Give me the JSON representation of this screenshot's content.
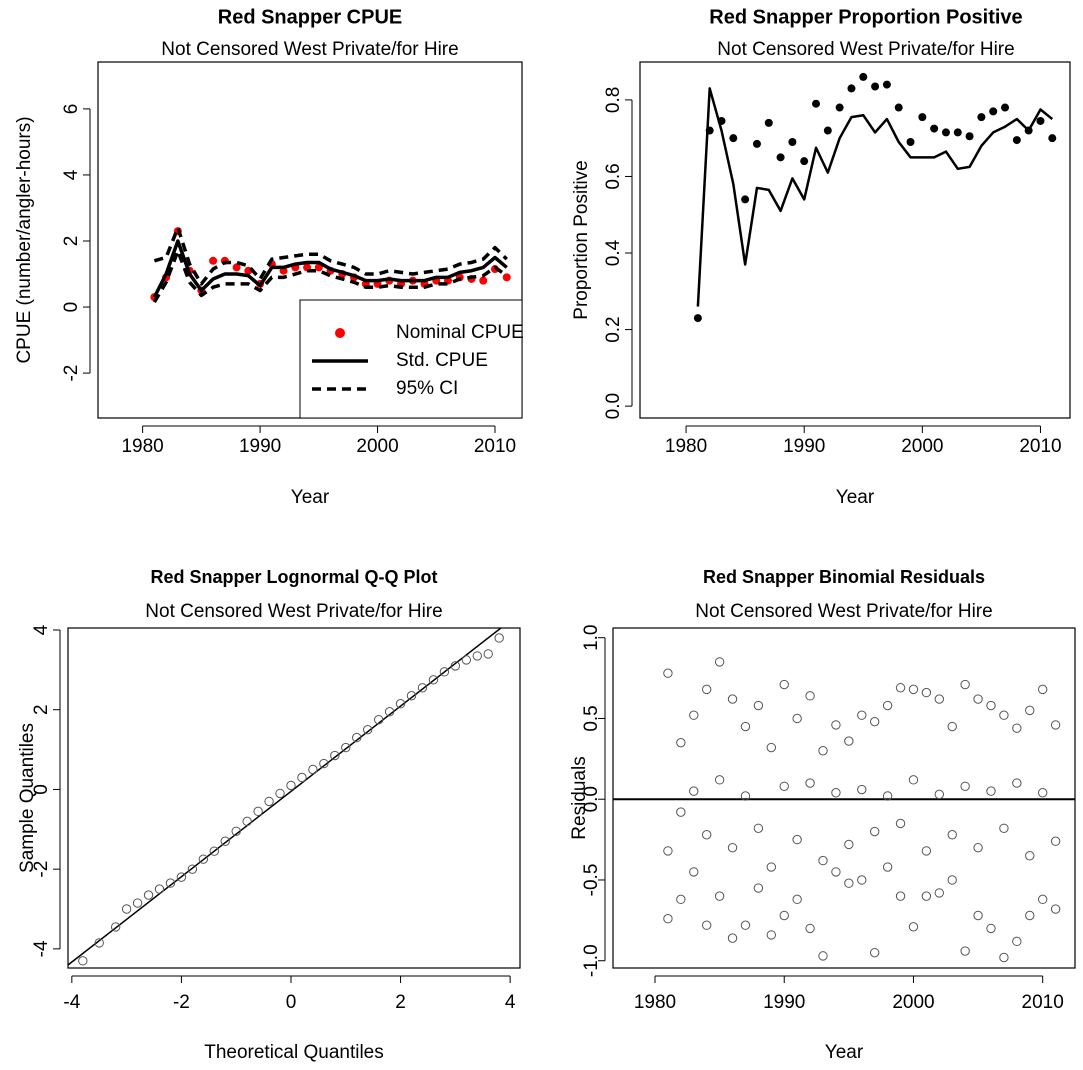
{
  "chart_data": [
    {
      "type": "line",
      "title": "Red Snapper CPUE",
      "subtitle": "Not Censored West Private/for Hire",
      "x_label": "Year",
      "y_label": "CPUE (number/angler-hours)",
      "xlim": [
        1976.2,
        2012.3
      ],
      "ylim": [
        -3.36,
        7.42
      ],
      "xticks": [
        1980,
        1990,
        2000,
        2010
      ],
      "yticks": [
        -2,
        0,
        2,
        4,
        6
      ],
      "legend": "bottomright",
      "x": [
        1981,
        1982,
        1983,
        1984,
        1985,
        1986,
        1987,
        1988,
        1989,
        1990,
        1991,
        1992,
        1993,
        1994,
        1995,
        1996,
        1997,
        1998,
        1999,
        2000,
        2001,
        2002,
        2003,
        2004,
        2005,
        2006,
        2007,
        2008,
        2009,
        2010,
        2011
      ],
      "series": [
        {
          "name": "Nominal CPUE",
          "color": "#ff0000",
          "marker": "dot",
          "line": "none",
          "values": [
            0.3,
            0.9,
            2.3,
            1.1,
            0.5,
            1.4,
            1.4,
            1.2,
            1.1,
            0.7,
            1.3,
            1.1,
            1.2,
            1.2,
            1.2,
            1.1,
            1.0,
            0.9,
            0.7,
            0.7,
            0.8,
            0.7,
            0.8,
            0.7,
            0.8,
            0.8,
            0.9,
            0.85,
            0.8,
            1.15,
            0.9
          ]
        },
        {
          "name": "Std. CPUE",
          "color": "#000000",
          "marker": "none",
          "line": "solid",
          "values": [
            0.3,
            1.0,
            2.0,
            1.0,
            0.5,
            0.85,
            1.0,
            1.0,
            0.95,
            0.65,
            1.2,
            1.2,
            1.3,
            1.35,
            1.35,
            1.15,
            1.05,
            0.95,
            0.8,
            0.8,
            0.85,
            0.8,
            0.8,
            0.8,
            0.9,
            0.9,
            1.05,
            1.1,
            1.2,
            1.5,
            1.2
          ]
        },
        {
          "name": "95% CI",
          "color": "#000000",
          "marker": "none",
          "line": "dashed",
          "lower": [
            0.15,
            0.75,
            1.7,
            0.75,
            0.35,
            0.6,
            0.7,
            0.7,
            0.7,
            0.5,
            0.9,
            0.9,
            1.0,
            1.1,
            1.1,
            0.95,
            0.85,
            0.75,
            0.6,
            0.6,
            0.65,
            0.6,
            0.6,
            0.6,
            0.7,
            0.7,
            0.85,
            0.9,
            0.95,
            1.2,
            0.95
          ],
          "upper": [
            1.4,
            1.5,
            2.4,
            1.3,
            0.7,
            1.15,
            1.35,
            1.35,
            1.25,
            0.85,
            1.45,
            1.5,
            1.55,
            1.6,
            1.6,
            1.4,
            1.3,
            1.2,
            1.0,
            1.0,
            1.1,
            1.05,
            1.0,
            1.05,
            1.1,
            1.15,
            1.3,
            1.35,
            1.45,
            1.8,
            1.45
          ]
        }
      ]
    },
    {
      "type": "line",
      "title": "Red Snapper Proportion Positive",
      "subtitle": "Not Censored West Private/for Hire",
      "x_label": "Year",
      "y_label": "Proportion Positive",
      "xlim": [
        1976.1,
        2012.5
      ],
      "ylim": [
        -0.031,
        0.899
      ],
      "xticks": [
        1980,
        1990,
        2000,
        2010
      ],
      "yticks": [
        {
          "value": 0,
          "label": "0.0"
        },
        0.2,
        0.4,
        0.6,
        0.8
      ],
      "x": [
        1981,
        1982,
        1983,
        1984,
        1985,
        1986,
        1987,
        1988,
        1989,
        1990,
        1991,
        1992,
        1993,
        1994,
        1995,
        1996,
        1997,
        1998,
        1999,
        2000,
        2001,
        2002,
        2003,
        2004,
        2005,
        2006,
        2007,
        2008,
        2009,
        2010,
        2011
      ],
      "series": [
        {
          "color": "#000000",
          "marker": "dot",
          "line": "none",
          "values": [
            0.23,
            0.72,
            0.745,
            0.7,
            0.54,
            0.685,
            0.74,
            0.65,
            0.69,
            0.64,
            0.79,
            0.72,
            0.78,
            0.83,
            0.86,
            0.835,
            0.84,
            0.78,
            0.69,
            0.755,
            0.725,
            0.715,
            0.715,
            0.705,
            0.755,
            0.77,
            0.78,
            0.695,
            0.72,
            0.745,
            0.7
          ]
        },
        {
          "color": "#000000",
          "marker": "none",
          "line": "solid",
          "values": [
            0.26,
            0.83,
            0.72,
            0.58,
            0.37,
            0.57,
            0.565,
            0.51,
            0.595,
            0.54,
            0.675,
            0.61,
            0.7,
            0.755,
            0.76,
            0.715,
            0.75,
            0.69,
            0.65,
            0.65,
            0.65,
            0.665,
            0.62,
            0.625,
            0.68,
            0.715,
            0.73,
            0.75,
            0.72,
            0.775,
            0.75
          ]
        }
      ]
    },
    {
      "type": "scatter",
      "title": "Red Snapper Lognormal Q-Q Plot",
      "subtitle": "Not Censored West Private/for Hire",
      "x_label": "Theoretical Quantiles",
      "y_label": "Sample Quantiles",
      "xlim": [
        -4.07,
        4.18
      ],
      "ylim": [
        -4.48,
        4.05
      ],
      "xticks": [
        -4,
        -2,
        0,
        2,
        4
      ],
      "yticks": [
        -4,
        -2,
        0,
        2,
        4
      ],
      "abline": {
        "intercept": -0.05,
        "slope": 1.07
      },
      "series": [
        {
          "color": "#555555",
          "marker": "circle",
          "line": "none",
          "x": [
            -3.8,
            -3.5,
            -3.2,
            -3.0,
            -2.8,
            -2.6,
            -2.4,
            -2.2,
            -2.0,
            -1.8,
            -1.6,
            -1.4,
            -1.2,
            -1.0,
            -0.8,
            -0.6,
            -0.4,
            -0.2,
            0,
            0.2,
            0.4,
            0.6,
            0.8,
            1.0,
            1.2,
            1.4,
            1.6,
            1.8,
            2.0,
            2.2,
            2.4,
            2.6,
            2.8,
            3.0,
            3.2,
            3.4,
            3.6,
            3.8
          ],
          "values": [
            -4.3,
            -3.85,
            -3.45,
            -3.0,
            -2.85,
            -2.65,
            -2.5,
            -2.35,
            -2.2,
            -2.0,
            -1.75,
            -1.55,
            -1.3,
            -1.05,
            -0.8,
            -0.55,
            -0.3,
            -0.1,
            0.1,
            0.3,
            0.5,
            0.65,
            0.85,
            1.05,
            1.3,
            1.5,
            1.75,
            1.95,
            2.15,
            2.35,
            2.55,
            2.75,
            2.95,
            3.1,
            3.25,
            3.35,
            3.4,
            3.8
          ]
        }
      ]
    },
    {
      "type": "scatter",
      "title": "Red Snapper Binomial Residuals",
      "subtitle": "Not Censored West Private/for Hire",
      "x_label": "Year",
      "y_label": "Residuals",
      "xlim": [
        1976.75,
        2012.5
      ],
      "ylim": [
        -1.045,
        1.06
      ],
      "xticks": [
        1980,
        1990,
        2000,
        2010
      ],
      "yticks": [
        {
          "value": -1,
          "label": "-1.0"
        },
        -0.5,
        {
          "value": 0,
          "label": "0.0"
        },
        0.5,
        {
          "value": 1,
          "label": "1.0"
        }
      ],
      "hline": 0,
      "series": [
        {
          "color": "#555555",
          "marker": "circle",
          "line": "none",
          "x": [
            1981,
            1981,
            1981,
            1982,
            1982,
            1982,
            1983,
            1983,
            1983,
            1984,
            1984,
            1984,
            1985,
            1985,
            1985,
            1986,
            1986,
            1986,
            1987,
            1987,
            1987,
            1988,
            1988,
            1988,
            1989,
            1989,
            1989,
            1990,
            1990,
            1990,
            1991,
            1991,
            1991,
            1992,
            1992,
            1992,
            1993,
            1993,
            1993,
            1994,
            1994,
            1994,
            1995,
            1995,
            1995,
            1996,
            1996,
            1996,
            1997,
            1997,
            1997,
            1998,
            1998,
            1998,
            1999,
            1999,
            1999,
            2000,
            2000,
            2000,
            2001,
            2001,
            2001,
            2002,
            2002,
            2002,
            2003,
            2003,
            2003,
            2004,
            2004,
            2004,
            2005,
            2005,
            2005,
            2006,
            2006,
            2006,
            2007,
            2007,
            2007,
            2008,
            2008,
            2008,
            2009,
            2009,
            2009,
            2010,
            2010,
            2010,
            2011,
            2011,
            2011
          ],
          "values": [
            0.78,
            -0.32,
            -0.74,
            0.35,
            -0.08,
            -0.62,
            0.52,
            0.05,
            -0.45,
            0.68,
            -0.22,
            -0.78,
            0.85,
            0.12,
            -0.6,
            0.62,
            -0.3,
            -0.86,
            0.45,
            0.02,
            -0.78,
            0.58,
            -0.18,
            -0.55,
            0.32,
            -0.42,
            -0.84,
            0.71,
            0.08,
            -0.72,
            0.5,
            -0.25,
            -0.62,
            0.64,
            0.1,
            -0.8,
            0.3,
            -0.38,
            -0.97,
            0.46,
            0.04,
            -0.45,
            0.36,
            -0.28,
            -0.52,
            0.52,
            0.06,
            -0.5,
            0.48,
            -0.2,
            -0.95,
            0.58,
            0.02,
            -0.42,
            0.69,
            -0.15,
            -0.6,
            0.68,
            0.12,
            -0.79,
            0.66,
            -0.32,
            -0.6,
            0.62,
            0.03,
            -0.58,
            0.45,
            -0.22,
            -0.5,
            0.71,
            0.08,
            -0.94,
            0.62,
            -0.3,
            -0.72,
            0.58,
            0.05,
            -0.8,
            0.52,
            -0.18,
            -0.98,
            0.44,
            0.1,
            -0.88,
            0.55,
            -0.35,
            -0.72,
            0.68,
            0.04,
            -0.62,
            0.46,
            -0.26,
            -0.68
          ]
        }
      ]
    }
  ]
}
